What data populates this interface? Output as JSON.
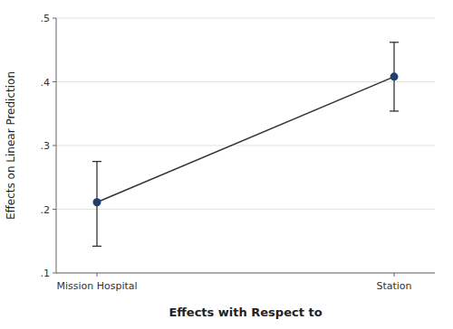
{
  "chart_data": {
    "type": "line",
    "xlabel": "Effects with Respect to",
    "ylabel": "Effects on Linear Prediction",
    "categories": [
      "Mission Hospital",
      "Station"
    ],
    "values": [
      0.211,
      0.408
    ],
    "ci_lower": [
      0.142,
      0.354
    ],
    "ci_upper": [
      0.275,
      0.462
    ],
    "color": "#1f3f6e",
    "ylim": [
      0.1,
      0.5
    ],
    "yticks": [
      {
        "value": 0.1,
        "label": ".1"
      },
      {
        "value": 0.2,
        "label": ".2"
      },
      {
        "value": 0.3,
        "label": ".3"
      },
      {
        "value": 0.4,
        "label": ".4"
      },
      {
        "value": 0.5,
        "label": ".5"
      }
    ],
    "grid": true
  }
}
